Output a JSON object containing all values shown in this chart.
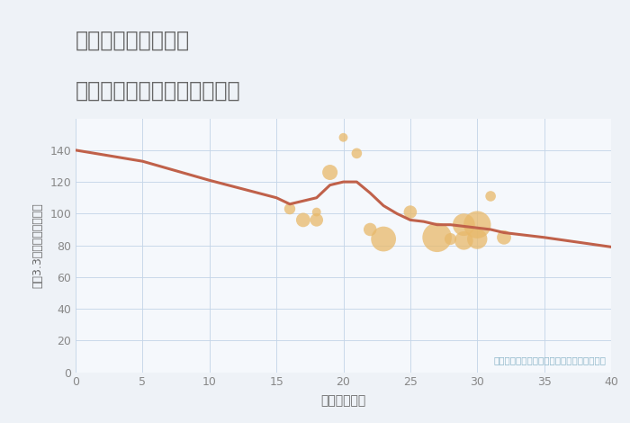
{
  "title_line1": "大阪府吹田市山田北",
  "title_line2": "築年数別中古マンション価格",
  "xlabel": "築年数（年）",
  "ylabel": "坪（3.3㎡）単価（万円）",
  "note": "円の大きさは、取引のあった物件面積を示す",
  "background_color": "#eef2f7",
  "plot_bg_color": "#f5f8fc",
  "xlim": [
    0,
    40
  ],
  "ylim": [
    0,
    160
  ],
  "xticks": [
    0,
    5,
    10,
    15,
    20,
    25,
    30,
    35,
    40
  ],
  "yticks": [
    0,
    20,
    40,
    60,
    80,
    100,
    120,
    140
  ],
  "line_x": [
    0,
    5,
    10,
    15,
    16,
    17,
    18,
    19,
    20,
    21,
    22,
    23,
    24,
    25,
    26,
    27,
    28,
    29,
    30,
    31,
    32,
    35,
    40
  ],
  "line_y": [
    140,
    133,
    121,
    110,
    106,
    108,
    110,
    118,
    120,
    120,
    113,
    105,
    100,
    96,
    95,
    93,
    93,
    92,
    91,
    90,
    88,
    85,
    79
  ],
  "line_color": "#c0614a",
  "line_width": 2.2,
  "scatter_x": [
    16,
    17,
    18,
    18,
    19,
    20,
    21,
    22,
    23,
    25,
    27,
    28,
    29,
    29,
    30,
    30,
    31,
    32
  ],
  "scatter_y": [
    103,
    96,
    101,
    96,
    126,
    148,
    138,
    90,
    84,
    101,
    85,
    84,
    93,
    83,
    93,
    84,
    111,
    85
  ],
  "scatter_size": [
    80,
    130,
    50,
    110,
    150,
    50,
    70,
    110,
    400,
    110,
    550,
    90,
    320,
    220,
    480,
    260,
    70,
    130
  ],
  "scatter_color": "#e8b96a",
  "scatter_alpha": 0.75,
  "title_color": "#666666",
  "title_fontsize": 17,
  "axis_label_color": "#666666",
  "tick_color": "#888888",
  "tick_fontsize": 9,
  "note_color": "#8ab4c8",
  "note_fontsize": 7.5,
  "grid_color": "#c5d5e8",
  "grid_alpha": 0.9,
  "grid_linewidth": 0.7
}
